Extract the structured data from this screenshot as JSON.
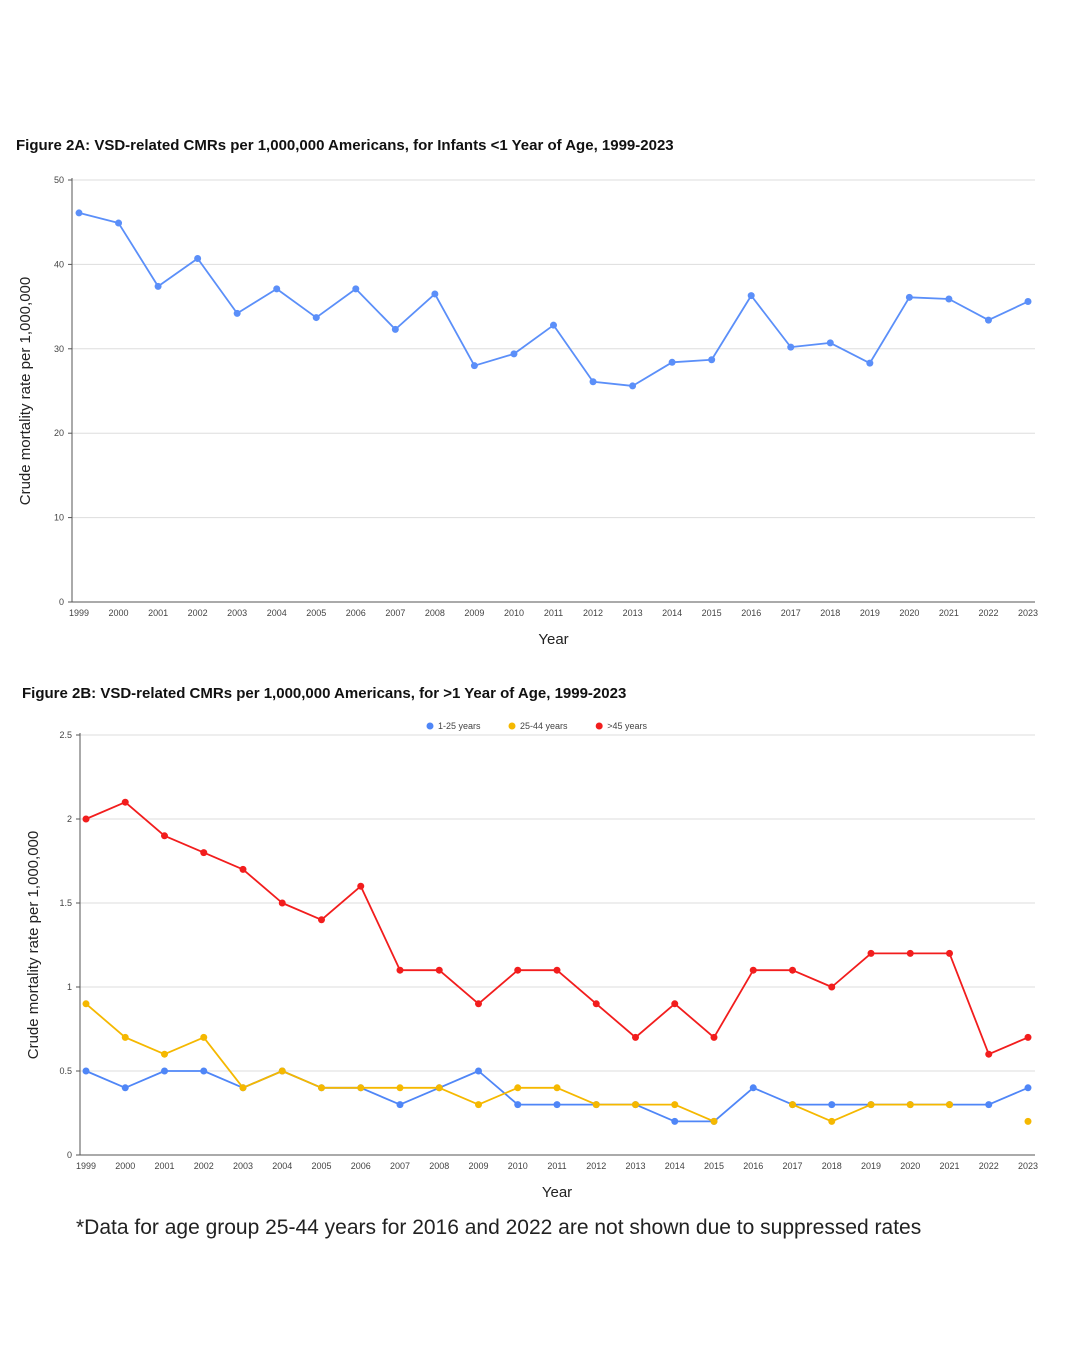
{
  "footnote": "*Data  for age group 25-44 years for 2016 and 2022 are not shown due to suppressed rates",
  "chart_data": [
    {
      "type": "line",
      "title": "Figure 2A: VSD-related CMRs per 1,000,000 Americans, for Infants <1 Year of Age, 1999-2023",
      "xlabel": "Year",
      "ylabel": "Crude mortality rate per 1,000,000",
      "ylim": [
        0,
        50
      ],
      "yticks": [
        0,
        10,
        20,
        30,
        40,
        50
      ],
      "grid": true,
      "categories": [
        "1999",
        "2000",
        "2001",
        "2002",
        "2003",
        "2004",
        "2005",
        "2006",
        "2007",
        "2008",
        "2009",
        "2010",
        "2011",
        "2012",
        "2013",
        "2014",
        "2015",
        "2016",
        "2017",
        "2018",
        "2019",
        "2020",
        "2021",
        "2022",
        "2023"
      ],
      "series": [
        {
          "name": "<1 year",
          "color": "#5b8ff9",
          "values": [
            46.1,
            44.9,
            37.4,
            40.7,
            34.2,
            37.1,
            33.7,
            37.1,
            32.3,
            36.5,
            28.0,
            29.4,
            32.8,
            26.1,
            25.6,
            28.4,
            28.7,
            36.3,
            30.2,
            30.7,
            28.3,
            36.1,
            35.9,
            33.4,
            35.6
          ]
        }
      ]
    },
    {
      "type": "line",
      "title": "Figure 2B: VSD-related CMRs per 1,000,000 Americans, for >1 Year of Age, 1999-2023",
      "xlabel": "Year",
      "ylabel": "Crude mortality rate per 1,000,000",
      "ylim": [
        0,
        2.5
      ],
      "yticks": [
        0,
        0.5,
        1,
        1.5,
        2,
        2.5
      ],
      "grid": true,
      "legend_position": "top-center",
      "categories": [
        "1999",
        "2000",
        "2001",
        "2002",
        "2003",
        "2004",
        "2005",
        "2006",
        "2007",
        "2008",
        "2009",
        "2010",
        "2011",
        "2012",
        "2013",
        "2014",
        "2015",
        "2016",
        "2017",
        "2018",
        "2019",
        "2020",
        "2021",
        "2022",
        "2023"
      ],
      "series": [
        {
          "name": "1-25 years",
          "color": "#4f86f7",
          "values": [
            0.5,
            0.4,
            0.5,
            0.5,
            0.4,
            0.5,
            0.4,
            0.4,
            0.3,
            0.4,
            0.5,
            0.3,
            0.3,
            0.3,
            0.3,
            0.2,
            0.2,
            0.4,
            0.3,
            0.3,
            0.3,
            0.3,
            0.3,
            0.3,
            0.4
          ]
        },
        {
          "name": "25-44 years",
          "color": "#f5b800",
          "values": [
            0.9,
            0.7,
            0.6,
            0.7,
            0.4,
            0.5,
            0.4,
            0.4,
            0.4,
            0.4,
            0.3,
            0.4,
            0.4,
            0.3,
            0.3,
            0.3,
            0.2,
            null,
            0.3,
            0.2,
            0.3,
            0.3,
            0.3,
            null,
            0.2
          ]
        },
        {
          "name": ">45 years",
          "color": "#f21d1d",
          "values": [
            2.0,
            2.1,
            1.9,
            1.8,
            1.7,
            1.5,
            1.4,
            1.6,
            1.1,
            1.1,
            0.9,
            1.1,
            1.1,
            0.9,
            0.7,
            0.9,
            0.7,
            1.1,
            1.1,
            1.0,
            1.2,
            1.2,
            1.2,
            0.6,
            0.7
          ]
        }
      ]
    }
  ]
}
